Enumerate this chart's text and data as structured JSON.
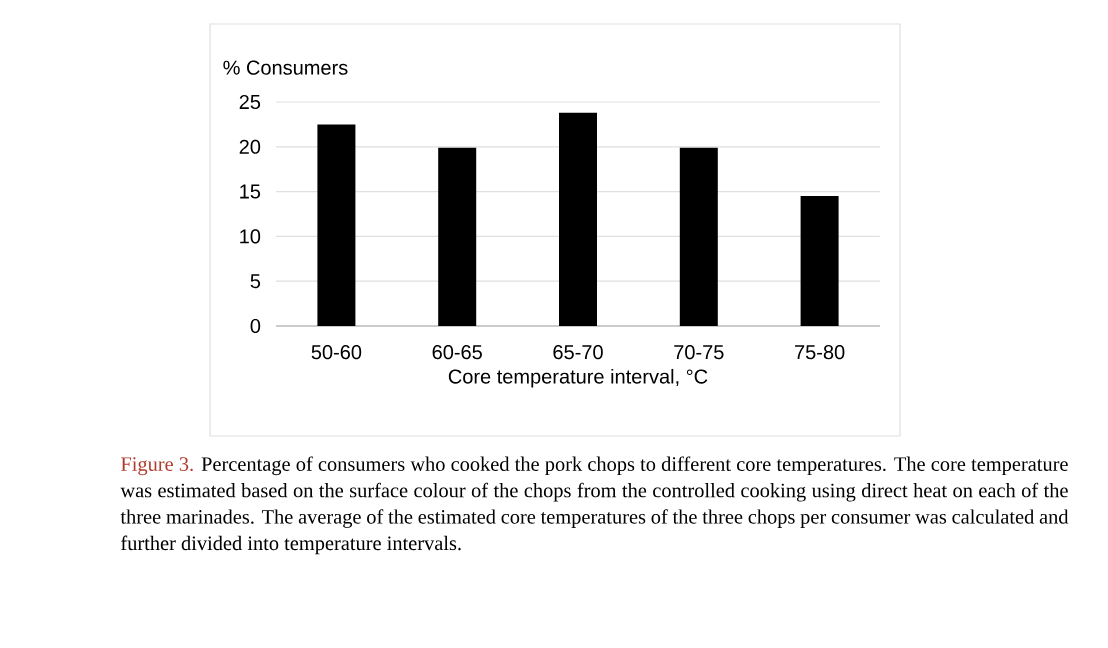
{
  "chart_data": {
    "type": "bar",
    "ylabel": "% Consumers",
    "xlabel": "Core temperature interval, °C",
    "categories": [
      "50-60",
      "60-65",
      "65-70",
      "70-75",
      "75-80"
    ],
    "values": [
      22.5,
      19.9,
      23.8,
      19.9,
      14.5
    ],
    "color": "#000000",
    "ylim": [
      0,
      25
    ],
    "yticks": [
      0,
      5,
      10,
      15,
      20,
      25
    ],
    "grid": "y",
    "annotations": [
      "Figure 3.",
      "Percentage of consumers who cooked the pork chops to different core temperatures. The core temperature was estimated based on the surface colour of the chops from the controlled cooking using direct heat on each of the three marinades. The average of the estimated core temperatures of the three chops per consumer was calculated and further divided into temperature intervals."
    ]
  }
}
